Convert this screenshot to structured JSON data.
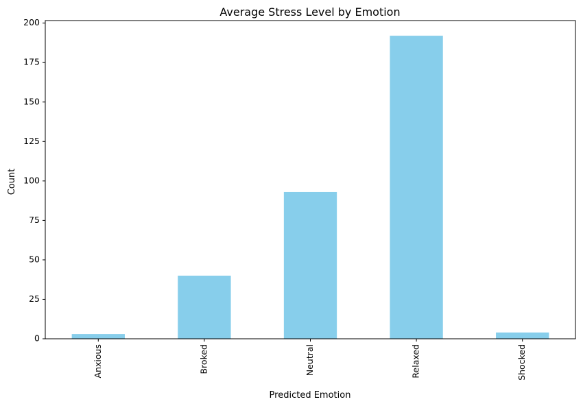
{
  "chart_data": {
    "type": "bar",
    "title": "Average Stress Level by Emotion",
    "xlabel": "Predicted Emotion",
    "ylabel": "Count",
    "categories": [
      "Anxious",
      "Broked",
      "Neutral",
      "Relaxed",
      "Shocked"
    ],
    "values": [
      3,
      40,
      93,
      192,
      4
    ],
    "ylim": [
      0,
      201.6
    ],
    "yticks": [
      0,
      25,
      50,
      75,
      100,
      125,
      150,
      175,
      200
    ],
    "bar_color": "#87ceeb",
    "grid": false,
    "legend": "none"
  }
}
